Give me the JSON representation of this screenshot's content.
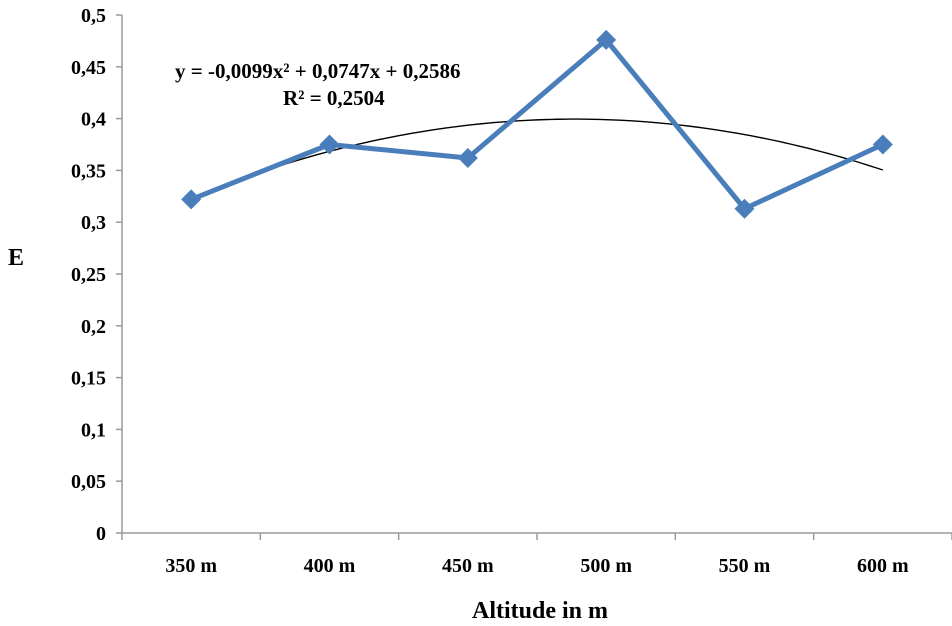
{
  "chart_data": {
    "type": "line",
    "title": "",
    "xlabel": "Altitude in m",
    "ylabel": "E",
    "categories": [
      "350 m",
      "400 m",
      "450 m",
      "500 m",
      "550 m",
      "600 m"
    ],
    "series": [
      {
        "values": [
          0.322,
          0.375,
          0.362,
          0.476,
          0.313,
          0.375
        ],
        "color": "#4a7ebb",
        "marker": "diamond"
      }
    ],
    "trendline": {
      "kind": "polynomial-2",
      "coefficients": {
        "a": -0.0099,
        "b": 0.0747,
        "c": 0.2586
      },
      "x_index_start": 1,
      "color": "#000000",
      "equation_label": "y = -0,0099x² + 0,0747x + 0,2586",
      "r2_label": "R² = 0,2504"
    },
    "ylim": [
      0,
      0.5
    ],
    "yticks": [
      0,
      0.05,
      0.1,
      0.15,
      0.2,
      0.25,
      0.3,
      0.35,
      0.4,
      0.45,
      0.5
    ],
    "ytick_labels": [
      "0",
      "0,05",
      "0,1",
      "0,15",
      "0,2",
      "0,25",
      "0,3",
      "0,35",
      "0,4",
      "0,45",
      "0,5"
    ],
    "grid": false,
    "legend": "none"
  }
}
